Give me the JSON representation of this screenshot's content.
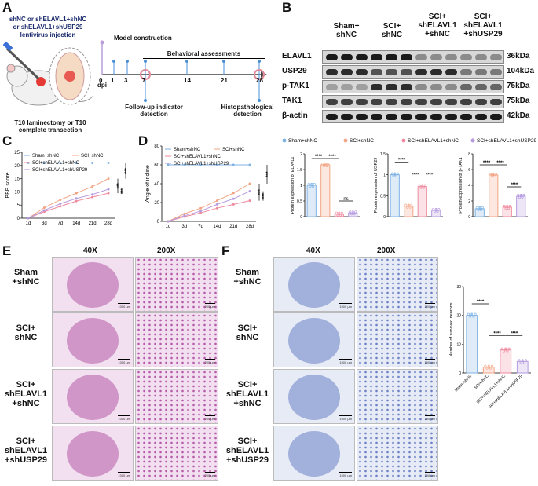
{
  "panels": {
    "A": "A",
    "B": "B",
    "C": "C",
    "D": "D",
    "E": "E",
    "F": "F"
  },
  "panelA": {
    "injection_lines": [
      "shNC or shELAVL1+shNC",
      "or shELAVL1+shUSP29",
      "lentivirus injection"
    ],
    "model_construction": "Model construction",
    "behavioral_assessments": "Behavioral assessments",
    "timeline_ticks": [
      "0",
      "1",
      "3",
      "7",
      "14",
      "21",
      "28"
    ],
    "dpi": "dpi",
    "followup": [
      "Follow-up indicator",
      "detection"
    ],
    "histo": [
      "Histopathological",
      "detection"
    ],
    "surgery": [
      "T10 laminectomy or T10",
      "complete transection"
    ]
  },
  "panelB": {
    "groups": [
      "Sham+\nshNC",
      "SCI+\nshNC",
      "SCI+\nshELAVL1\n+shNC",
      "SCI+\nshELAVL1\n+shUSP29"
    ],
    "rows": [
      {
        "name": "ELAVL1",
        "kda": "36kDa"
      },
      {
        "name": "USP29",
        "kda": "104kDa"
      },
      {
        "name": "p-TAK1",
        "kda": "75kDa"
      },
      {
        "name": "TAK1",
        "kda": "75kDa"
      },
      {
        "name": "β-actin",
        "kda": "42kDa"
      }
    ],
    "legend": [
      "Sham+shNC",
      "SCI+shNC",
      "SCI+shELAVL1+shNC",
      "SCI+shELAVL1+shUSP29"
    ],
    "bar_ylabels": [
      "Protein expression of ELAVL1",
      "Protein expression of USP29",
      "Protein expression of p-TAK1"
    ],
    "sig": {
      "stars": "****",
      "ns": "ns"
    }
  },
  "panelC": {
    "ylabel": "BBB score",
    "legend": [
      "Sham+shNC",
      "SCI+shNC",
      "SCI+shELAVL1+shNC",
      "SCI+shELAVL1+shUSP29"
    ],
    "sig": [
      "***",
      "***",
      "***"
    ]
  },
  "panelD": {
    "ylabel": "Angle of incline",
    "legend": [
      "Sham+shNC",
      "SCI+shNC",
      "SCI+shELAVL1+shNC",
      "SCI+shELAVL1+shUSP29"
    ],
    "sig": [
      "***",
      "***",
      "***"
    ]
  },
  "panelE": {
    "mags": [
      "40X",
      "200X"
    ],
    "rows": [
      "Sham\n+shNC",
      "SCI+\nshNC",
      "SCI+\nshELAVL1\n+shNC",
      "SCI+\nshELAVL1\n+shUSP29"
    ],
    "scale_40x": "1000 μm",
    "scale_200x": "200 μm"
  },
  "panelF": {
    "mags": [
      "40X",
      "200X"
    ],
    "rows": [
      "Sham\n+shNC",
      "SCI+\nshNC",
      "SCI+\nshELAVL1\n+shNC",
      "SCI+\nshELAVL1\n+shUSP29"
    ],
    "scale_40x": "1000 μm",
    "scale_200x": "200 μm",
    "bar_ylabel": "Number of survived neurons",
    "sig": "****"
  },
  "colors": {
    "sham": "#7fb2e5",
    "sci": "#f2a585",
    "elavl1": "#ef8a9e",
    "usp29": "#b59ae0"
  },
  "chart_data": [
    {
      "type": "line",
      "title": "",
      "ylabel": "BBB score",
      "xlabel": "",
      "categories": [
        "1d",
        "3d",
        "7d",
        "14d",
        "21d",
        "28d"
      ],
      "ylim": [
        0,
        25
      ],
      "yticks": [
        0,
        5,
        10,
        15,
        20,
        25
      ],
      "series": [
        {
          "name": "Sham+shNC",
          "values": [
            21,
            21,
            21,
            21,
            21,
            21
          ]
        },
        {
          "name": "SCI+shNC",
          "values": [
            0,
            4,
            7,
            9.5,
            12,
            15
          ]
        },
        {
          "name": "SCI+shELAVL1+shNC",
          "values": [
            0,
            2.5,
            4.5,
            6.5,
            8,
            9.5
          ]
        },
        {
          "name": "SCI+shELAVL1+shUSP29",
          "values": [
            0,
            3,
            5.5,
            7.5,
            9,
            11
          ]
        }
      ]
    },
    {
      "type": "line",
      "title": "",
      "ylabel": "Angle of incline",
      "xlabel": "",
      "categories": [
        "1d",
        "3d",
        "7d",
        "14d",
        "21d",
        "28d"
      ],
      "ylim": [
        0,
        80
      ],
      "yticks": [
        0,
        20,
        40,
        60,
        80
      ],
      "series": [
        {
          "name": "Sham+shNC",
          "values": [
            60,
            60,
            60,
            60,
            60,
            60
          ]
        },
        {
          "name": "SCI+shNC",
          "values": [
            0,
            8,
            14,
            22,
            30,
            40
          ]
        },
        {
          "name": "SCI+shELAVL1+shNC",
          "values": [
            0,
            5,
            9,
            14,
            18,
            22
          ]
        },
        {
          "name": "SCI+shELAVL1+shUSP29",
          "values": [
            0,
            6,
            11,
            18,
            24,
            32
          ]
        }
      ]
    },
    {
      "type": "bar",
      "ylabel": "Protein expression of ELAVL1",
      "categories": [
        "Sham+shNC",
        "SCI+shNC",
        "SCI+shELAVL1+shNC",
        "SCI+shELAVL1+shUSP29"
      ],
      "values": [
        1.0,
        1.65,
        0.08,
        0.12
      ],
      "ylim": [
        0,
        2.0
      ],
      "yticks": [
        0,
        0.5,
        1.0,
        1.5,
        2.0
      ]
    },
    {
      "type": "bar",
      "ylabel": "Protein expression of USP29",
      "categories": [
        "Sham+shNC",
        "SCI+shNC",
        "SCI+shELAVL1+shNC",
        "SCI+shELAVL1+shUSP29"
      ],
      "values": [
        1.0,
        0.25,
        0.72,
        0.15
      ],
      "ylim": [
        0,
        1.5
      ],
      "yticks": [
        0,
        0.5,
        1.0,
        1.5
      ]
    },
    {
      "type": "bar",
      "ylabel": "Protein expression of p-TAK1",
      "categories": [
        "Sham+shNC",
        "SCI+shNC",
        "SCI+shELAVL1+shNC",
        "SCI+shELAVL1+shUSP29"
      ],
      "values": [
        1.0,
        5.3,
        1.2,
        2.6
      ],
      "ylim": [
        0,
        8
      ],
      "yticks": [
        0,
        2,
        4,
        6,
        8
      ]
    },
    {
      "type": "bar",
      "ylabel": "Number of survived neurons",
      "categories": [
        "Sham+shNC",
        "SCI+shNC",
        "SCI+shELAVL1+shNC",
        "SCI+shELAVL1+shUSP29"
      ],
      "values": [
        20,
        2,
        8,
        4
      ],
      "ylim": [
        0,
        30
      ],
      "yticks": [
        0,
        10,
        20,
        30
      ]
    }
  ]
}
